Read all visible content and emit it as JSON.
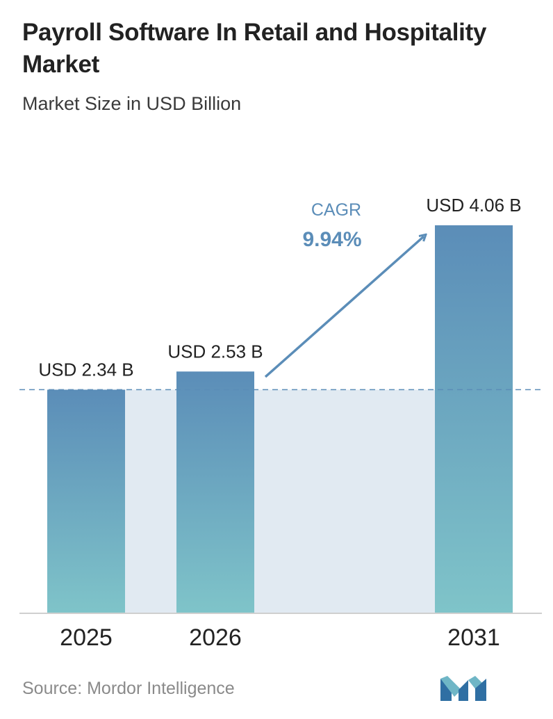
{
  "header": {
    "title": "Payroll Software In Retail and Hospitality Market",
    "subtitle": "Market Size in USD Billion"
  },
  "chart_data": {
    "type": "bar",
    "categories": [
      "2025",
      "2026",
      "2031"
    ],
    "values": [
      2.34,
      2.53,
      4.06
    ],
    "value_labels": [
      "USD 2.34 B",
      "USD 2.53 B",
      "USD 4.06 B"
    ],
    "cagr_label": "CAGR",
    "cagr_value": "9.94%",
    "reference_line_value": 2.34,
    "ylim": [
      0,
      4.06
    ],
    "grid": false,
    "colors": {
      "bar_top": "#5b8db8",
      "bar_bottom": "#7fc4c9",
      "band": "#e1eaf2",
      "reference_line": "#5b8db8",
      "cagr_arrow": "#5b8db8",
      "cagr_text": "#5b8db8"
    }
  },
  "footer": {
    "source": "Source: Mordor Intelligence",
    "logo_icon": "mordor-intelligence-logo-icon"
  }
}
